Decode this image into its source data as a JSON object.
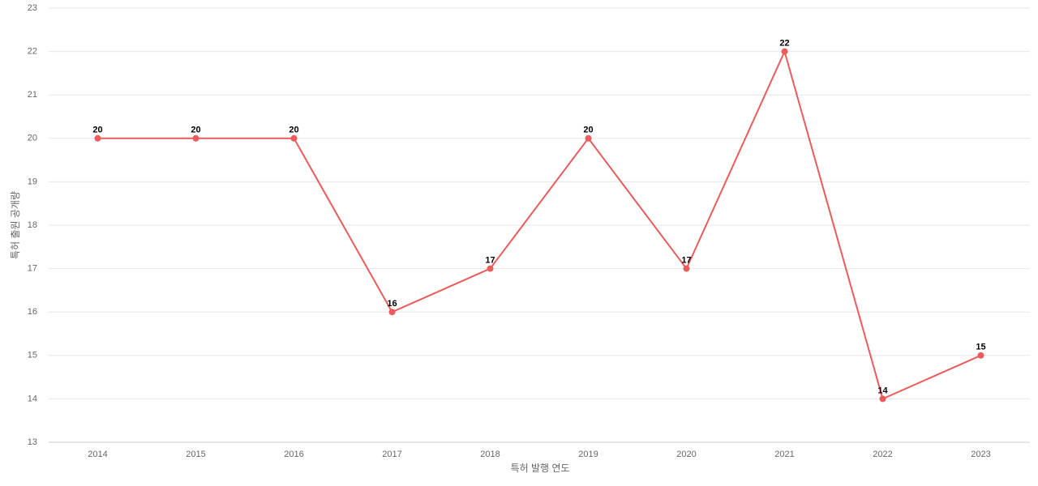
{
  "chart_data": {
    "type": "line",
    "x_label": "특허 발행 연도",
    "y_label": "특허 출원 공개량",
    "categories": [
      "2014",
      "2015",
      "2016",
      "2017",
      "2018",
      "2019",
      "2020",
      "2021",
      "2022",
      "2023"
    ],
    "series": [
      {
        "color": "#eb5b5b",
        "values": [
          20,
          20,
          20,
          16,
          17,
          20,
          17,
          22,
          14,
          15
        ]
      }
    ],
    "ylim": [
      13,
      23
    ],
    "yticks": [
      13,
      14,
      15,
      16,
      17,
      18,
      19,
      20,
      21,
      22,
      23
    ],
    "grid": true,
    "data_labels": true
  }
}
